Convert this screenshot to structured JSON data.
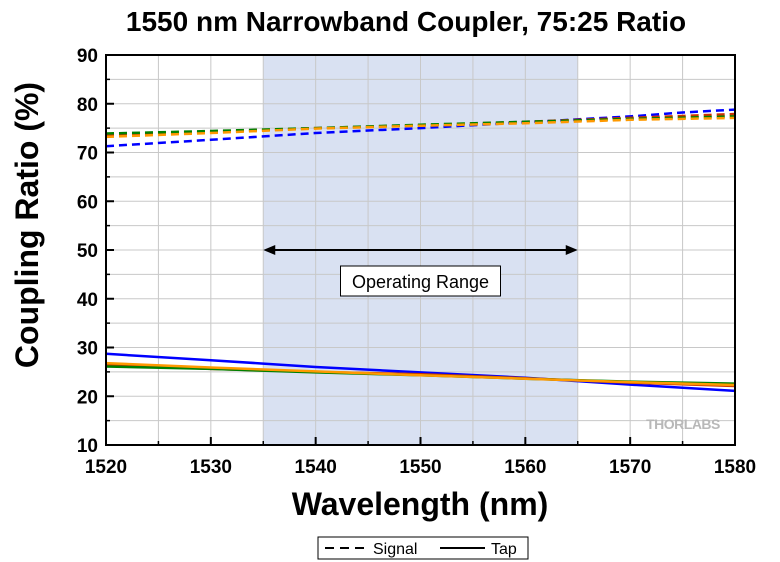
{
  "chart_data": {
    "type": "line",
    "title": "1550 nm Narrowband Coupler, 75:25 Ratio",
    "xlabel": "Wavelength (nm)",
    "ylabel": "Coupling Ratio (%)",
    "xlim": [
      1520,
      1580
    ],
    "ylim": [
      10,
      90
    ],
    "xticks": [
      1520,
      1530,
      1540,
      1550,
      1560,
      1570,
      1580
    ],
    "yticks": [
      10,
      20,
      30,
      40,
      50,
      60,
      70,
      80,
      90
    ],
    "grid": true,
    "shaded_region": {
      "x": [
        1535,
        1565
      ],
      "color": "#d9e1f2"
    },
    "annotation": {
      "text": "Operating Range",
      "x_range": [
        1535,
        1565
      ],
      "y": 50
    },
    "legend": {
      "position": "bottom-center",
      "entries": [
        {
          "label": "Signal",
          "style": "dashed"
        },
        {
          "label": "Tap",
          "style": "solid"
        }
      ]
    },
    "watermark": "THORLABS",
    "series": [
      {
        "style": "dashed",
        "color": "#0000ff",
        "x": [
          1520,
          1530,
          1535,
          1540,
          1550,
          1560,
          1570,
          1575,
          1580
        ],
        "y": [
          71.3,
          72.6,
          73.3,
          74.0,
          75.0,
          76.2,
          77.4,
          78.2,
          78.8
        ]
      },
      {
        "style": "dashed",
        "color": "#cc3300",
        "x": [
          1520,
          1530,
          1540,
          1550,
          1560,
          1570,
          1580
        ],
        "y": [
          73.6,
          74.2,
          75.0,
          75.6,
          76.3,
          77.1,
          77.9
        ]
      },
      {
        "style": "dashed",
        "color": "#008000",
        "x": [
          1520,
          1530,
          1540,
          1550,
          1560,
          1570,
          1580
        ],
        "y": [
          73.9,
          74.4,
          75.0,
          75.7,
          76.3,
          76.9,
          77.4
        ]
      },
      {
        "style": "dashed",
        "color": "#ff9900",
        "x": [
          1520,
          1530,
          1540,
          1550,
          1560,
          1570,
          1580
        ],
        "y": [
          73.2,
          74.0,
          74.9,
          75.5,
          76.0,
          76.7,
          77.1
        ]
      },
      {
        "style": "solid",
        "color": "#0000ff",
        "x": [
          1520,
          1530,
          1535,
          1540,
          1550,
          1560,
          1570,
          1580
        ],
        "y": [
          28.7,
          27.4,
          26.7,
          26.0,
          24.9,
          23.8,
          22.4,
          21.1
        ]
      },
      {
        "style": "solid",
        "color": "#cc3300",
        "x": [
          1520,
          1530,
          1540,
          1550,
          1560,
          1570,
          1580
        ],
        "y": [
          26.5,
          25.6,
          25.0,
          24.5,
          23.7,
          22.8,
          22.1
        ]
      },
      {
        "style": "solid",
        "color": "#008000",
        "x": [
          1520,
          1530,
          1540,
          1550,
          1560,
          1570,
          1580
        ],
        "y": [
          26.1,
          25.6,
          24.9,
          24.3,
          23.6,
          23.0,
          22.6
        ]
      },
      {
        "style": "solid",
        "color": "#ff9900",
        "x": [
          1520,
          1530,
          1540,
          1550,
          1560,
          1570,
          1580
        ],
        "y": [
          26.8,
          25.9,
          25.1,
          24.3,
          23.6,
          22.9,
          22.3
        ]
      }
    ]
  }
}
